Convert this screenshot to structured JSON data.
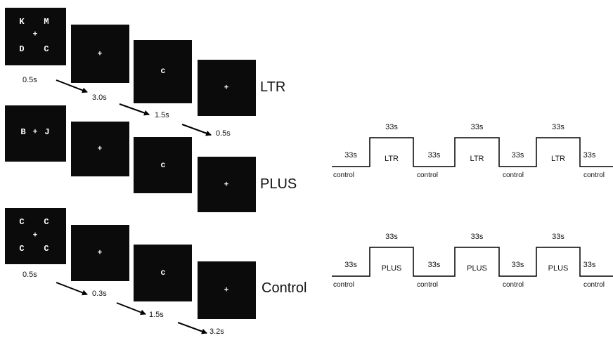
{
  "trials": {
    "ltr": {
      "label": "LTR",
      "frame1": {
        "k": "K",
        "m": "M",
        "d": "D",
        "c": "C",
        "center": "+"
      },
      "frame2": "+",
      "frame3": "c",
      "frame4": "+",
      "durations": [
        "0.5s",
        "3.0s",
        "1.5s",
        "0.5s"
      ]
    },
    "plus": {
      "label": "PLUS",
      "frame1": {
        "left": "B",
        "center": "+",
        "right": "J"
      },
      "frame2": "+",
      "frame3": "c",
      "frame4": "+"
    },
    "control": {
      "label": "Control",
      "frame1": {
        "tl": "C",
        "tr": "C",
        "bl": "C",
        "br": "C",
        "center": "+"
      },
      "frame2": "+",
      "frame3": "c",
      "frame4": "+",
      "durations": [
        "0.5s",
        "0.3s",
        "1.5s",
        "3.2s"
      ]
    }
  },
  "block_designs": [
    {
      "task_label": "LTR",
      "baseline_label": "control",
      "task_duration": "33s",
      "baseline_duration": "33s",
      "cycles": 3
    },
    {
      "task_label": "PLUS",
      "baseline_label": "control",
      "task_duration": "33s",
      "baseline_duration": "33s",
      "cycles": 3
    }
  ]
}
